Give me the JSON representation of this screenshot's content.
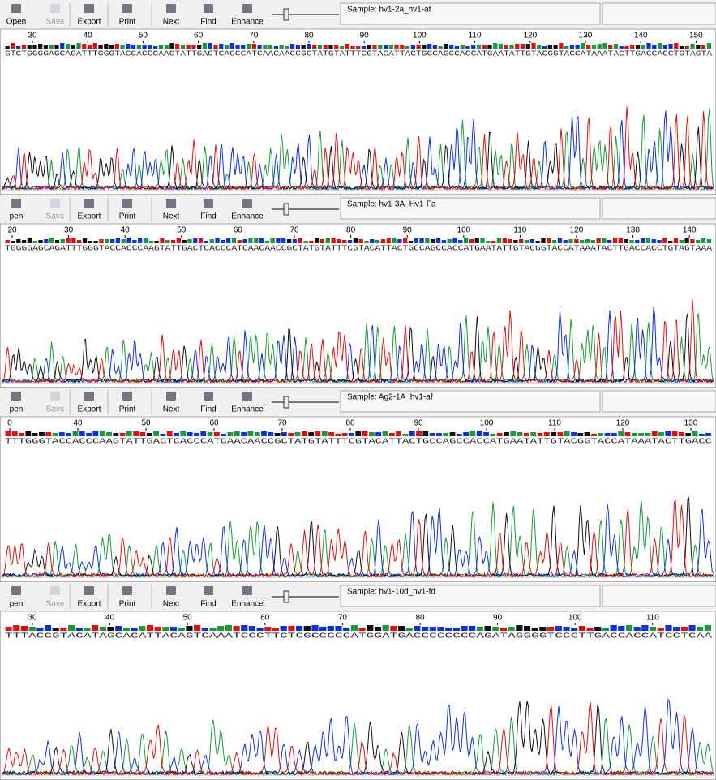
{
  "panels": [
    {
      "toolbar": [
        "Open",
        "Save",
        "Export",
        "Print",
        "Next",
        "Find",
        "Enhance"
      ],
      "sample": "Sample: hv1-2a_hv1-af",
      "ruler": [
        30,
        40,
        50,
        60,
        70,
        80,
        90,
        100,
        110,
        120,
        130,
        140,
        150
      ],
      "sequence": "GTCTGGGGAGCAGATTTGGGTACCACCCAAGTATTGACTCACCCATCAACAACCGCTATGTATTTCGTACATTACTGCCAGCCACCATGAATATTGTACGGTACCATAAATACTTGACCACCTGTAGTA"
    },
    {
      "toolbar": [
        "pen",
        "Save",
        "Export",
        "Print",
        "Next",
        "Find",
        "Enhance"
      ],
      "sample": "Sample: hv1-3A_Hv1-Fa",
      "ruler": [
        20,
        30,
        40,
        50,
        60,
        70,
        80,
        90,
        100,
        110,
        120,
        130,
        140
      ],
      "sequence": "TGGGGAGCAGATTTGGGTACCACCCAAGTATTGACTCACCCATCAACAACCGCTATGTATTTCGTACATTACTGCCAGCCACCATGAATATTGTACGGTACCATAAATACTTGACCACCTGTAGTAAA"
    },
    {
      "toolbar": [
        "pen",
        "Save",
        "Export",
        "Print",
        "Next",
        "Find",
        "Enhance"
      ],
      "sample": "Sample: Ag2-1A_hv1-af",
      "ruler": [
        0,
        40,
        50,
        60,
        70,
        80,
        90,
        100,
        110,
        120,
        130
      ],
      "sequence": "TTTGGGTACCACCCAAGTATTGACTCACCCATCAACAACCGCTATGTATTTCGTACATTACTGCCAGCCACCATGAATATTGTACGGTACCATAAATACTTGACC"
    },
    {
      "toolbar": [
        "pen",
        "Save",
        "Export",
        "Print",
        "Next",
        "Find",
        "Enhance"
      ],
      "sample": "Sample: hv1-10d_hv1-fd",
      "ruler": [
        30,
        40,
        50,
        60,
        70,
        80,
        90,
        100,
        110
      ],
      "sequence": "TTTACCGTACATAGCACATTACAGTCAAATCCCTTCTCGCCCCCATGGATGACCCCCCCCAGATAGGGGTCCCTTGACCACCATCCTCAA"
    }
  ]
}
